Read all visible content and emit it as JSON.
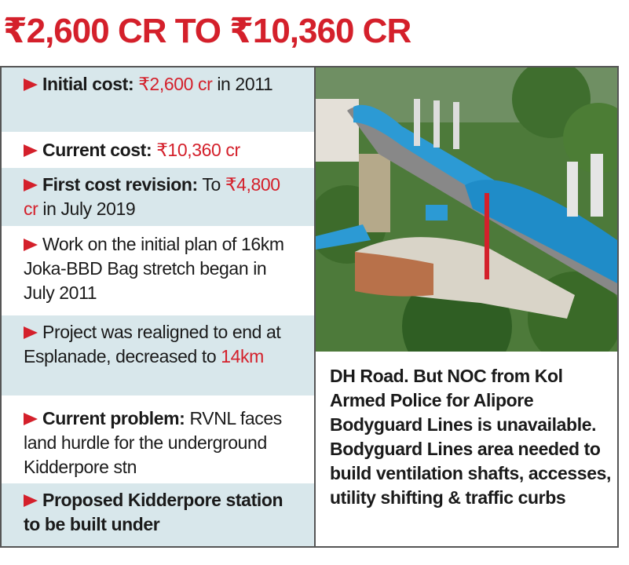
{
  "title": "₹2,600 CR TO ₹10,360 CR",
  "items": [
    [
      {
        "style": "bold",
        "text": "Initial cost:"
      },
      {
        "style": "red",
        "text": "₹2,600 cr"
      },
      {
        "style": "plain",
        "text": "in 2011"
      }
    ],
    [
      {
        "style": "bold",
        "text": "Current cost:"
      },
      {
        "style": "red",
        "text": "₹10,360 cr"
      }
    ],
    [
      {
        "style": "bold",
        "text": "First cost revision:"
      },
      {
        "style": "plain",
        "text": "To"
      },
      {
        "style": "red",
        "text": "₹4,800 cr"
      },
      {
        "style": "plain",
        "text": "in July 2019"
      }
    ],
    [
      {
        "style": "plain",
        "text": "Work on the initial plan of 16km Joka-BBD Bag stretch began in July 2011"
      }
    ],
    [
      {
        "style": "plain",
        "text": "Project was realigned to end at Esplanade, decreased to"
      },
      {
        "style": "red",
        "text": "14km"
      }
    ],
    [
      {
        "style": "bold",
        "text": "Current problem:"
      },
      {
        "style": "plain",
        "text": "RVNL faces land hurdle for the underground Kidderpore stn"
      }
    ],
    [
      {
        "style": "bold",
        "text": "Proposed Kidderpore station to be built under"
      }
    ]
  ],
  "continuation": "DH Road. But NOC from Kol Armed Police for Alipore Bodyguard Lines is unavailable. Bodyguard Lines area needed to build ventilation shafts, accesses, utility shifting & traffic curbs"
}
